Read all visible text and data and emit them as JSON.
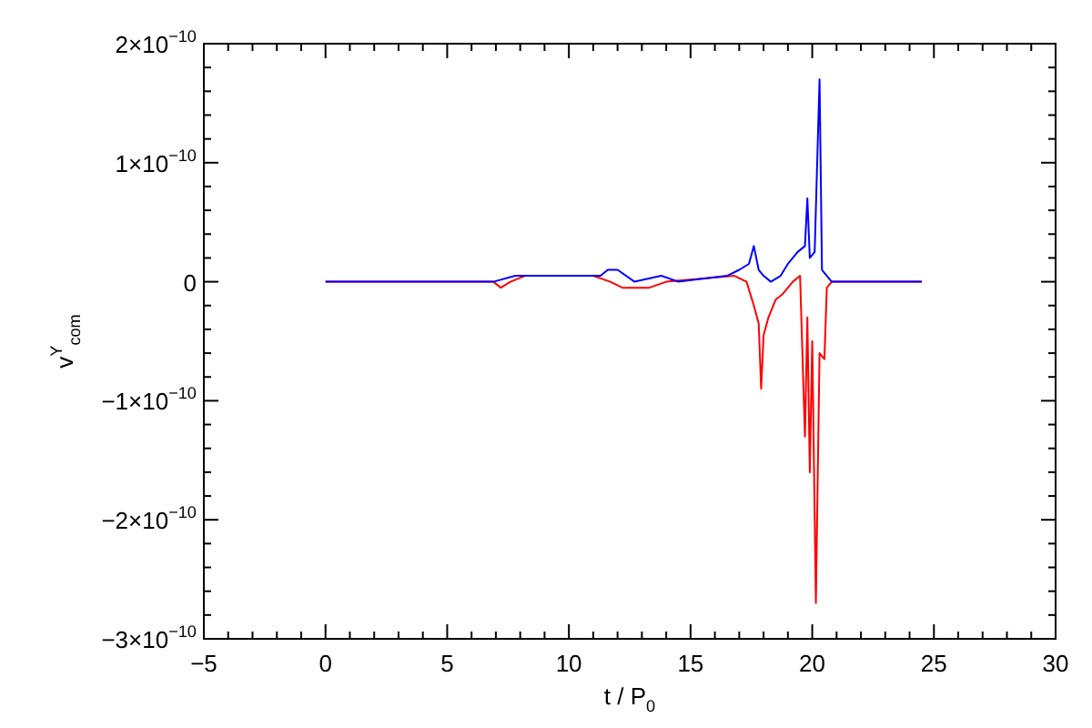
{
  "chart_data": {
    "type": "line",
    "xlabel": "t / P$_{0}$",
    "ylabel": "v$^{Y}$$_{com}$",
    "xlim": [
      -5,
      30
    ],
    "xticks": [
      -5,
      0,
      5,
      10,
      15,
      20,
      25,
      30
    ],
    "ylim": [
      -3e-10,
      2e-10
    ],
    "yticks": [
      {
        "value": -3e-10,
        "label": "−3×10$^{−10}$"
      },
      {
        "value": -2e-10,
        "label": "−2×10$^{−10}$"
      },
      {
        "value": -1e-10,
        "label": "−1×10$^{−10}$"
      },
      0,
      {
        "value": 1e-10,
        "label": "1×10$^{−10}$"
      },
      {
        "value": 2e-10,
        "label": "2×10$^{−10}$"
      }
    ],
    "grid": false,
    "marker": "none",
    "line_style": "solid",
    "series": [
      {
        "color": "#ff0000",
        "x": [
          0,
          6.9,
          7.2,
          7.6,
          8.2,
          11,
          11.7,
          12.2,
          13.3,
          14,
          16.8,
          17.3,
          17.6,
          17.8,
          17.9,
          18,
          18.2,
          18.5,
          18.8,
          19.2,
          19.5,
          19.7,
          19.8,
          19.9,
          20,
          20.15,
          20.3,
          20.5,
          20.6,
          20.8,
          24.5
        ],
        "values": [
          0,
          0,
          -5e-12,
          0,
          5e-12,
          5e-12,
          0,
          -5e-12,
          -5e-12,
          0,
          5e-12,
          0,
          -2e-11,
          -3.5e-11,
          -9e-11,
          -4.5e-11,
          -3e-11,
          -1.5e-11,
          -1e-11,
          0,
          5e-12,
          -1.3e-10,
          -3e-11,
          -1.6e-10,
          -5e-11,
          -2.7e-10,
          -6e-11,
          -6.5e-11,
          -5e-12,
          0,
          0
        ]
      },
      {
        "color": "#0000ff",
        "x": [
          0,
          6.9,
          7.8,
          8.2,
          11,
          11.3,
          11.6,
          12,
          12.7,
          13.8,
          14.5,
          16.5,
          17,
          17.4,
          17.6,
          17.8,
          18,
          18.3,
          18.7,
          19,
          19.4,
          19.7,
          19.8,
          19.9,
          20.1,
          20.3,
          20.4,
          20.6,
          20.8,
          24.5
        ],
        "values": [
          0,
          0,
          5e-12,
          5e-12,
          5e-12,
          5e-12,
          1e-11,
          1e-11,
          0,
          5e-12,
          0,
          5e-12,
          1e-11,
          1.5e-11,
          3e-11,
          1e-11,
          5e-12,
          0,
          5e-12,
          1.5e-11,
          2.5e-11,
          3e-11,
          7e-11,
          2e-11,
          2.5e-11,
          1.7e-10,
          1e-11,
          5e-12,
          0,
          0
        ]
      }
    ]
  }
}
